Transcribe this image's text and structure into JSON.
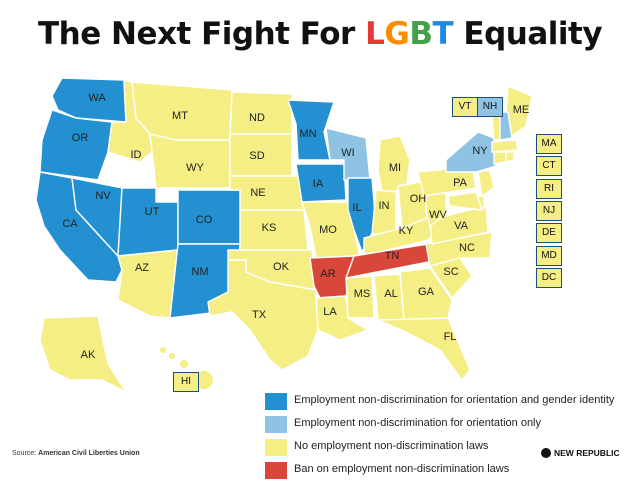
{
  "title": {
    "prefix": "The Next Fight For ",
    "highlight": [
      "L",
      "G",
      "B",
      "T"
    ],
    "suffix": " Equality"
  },
  "colors": {
    "orientation_and_gender_identity": "#2390d1",
    "orientation_only": "#8ec3e3",
    "none": "#f4ee84",
    "ban": "#d9473a",
    "rainbow": [
      "#e53935",
      "#fb8c00",
      "#43a047",
      "#1e88e5",
      "#8e24aa"
    ]
  },
  "states": {
    "WA": "Employment non-discrimination for orientation and gender identity",
    "OR": "Employment non-discrimination for orientation and gender identity",
    "CA": "Employment non-discrimination for orientation and gender identity",
    "NV": "Employment non-discrimination for orientation and gender identity",
    "UT": "Employment non-discrimination for orientation and gender identity",
    "CO": "Employment non-discrimination for orientation and gender identity",
    "NM": "Employment non-discrimination for orientation and gender identity",
    "MN": "Employment non-discrimination for orientation and gender identity",
    "IA": "Employment non-discrimination for orientation and gender identity",
    "IL": "Employment non-discrimination for orientation and gender identity",
    "WI": "Employment non-discrimination for orientation only",
    "NY": "Employment non-discrimination for orientation only",
    "NH": "Employment non-discrimination for orientation only",
    "AR": "Ban on employment non-discrimination laws",
    "TN": "Ban on employment non-discrimination laws"
  },
  "map_labels": [
    "WA",
    "OR",
    "CA",
    "NV",
    "ID",
    "MT",
    "WY",
    "UT",
    "CO",
    "AZ",
    "NM",
    "ND",
    "SD",
    "NE",
    "KS",
    "OK",
    "TX",
    "MN",
    "IA",
    "MO",
    "AR",
    "LA",
    "WI",
    "IL",
    "MI",
    "IN",
    "OH",
    "KY",
    "TN",
    "MS",
    "AL",
    "GA",
    "FL",
    "SC",
    "NC",
    "VA",
    "WV",
    "PA",
    "NY",
    "ME",
    "AK",
    "HI"
  ],
  "ne_boxes": {
    "top": [
      "VT",
      "NH"
    ],
    "right": [
      "MA",
      "CT",
      "RI",
      "NJ",
      "DE",
      "MD",
      "DC"
    ],
    "hi": "HI"
  },
  "legend": [
    {
      "label": "Employment non-discrimination for orientation and gender identity",
      "color": "#2390d1"
    },
    {
      "label": "Employment non-discrimination for orientation only",
      "color": "#8ec3e3"
    },
    {
      "label": "No employment non-discrimination laws",
      "color": "#f4ee84"
    },
    {
      "label": "Ban on employment non-discrimination laws",
      "color": "#d9473a"
    }
  ],
  "source": {
    "prefix": "Source: ",
    "name": "American Civil Liberties Union"
  },
  "brand": "NEW REPUBLIC"
}
